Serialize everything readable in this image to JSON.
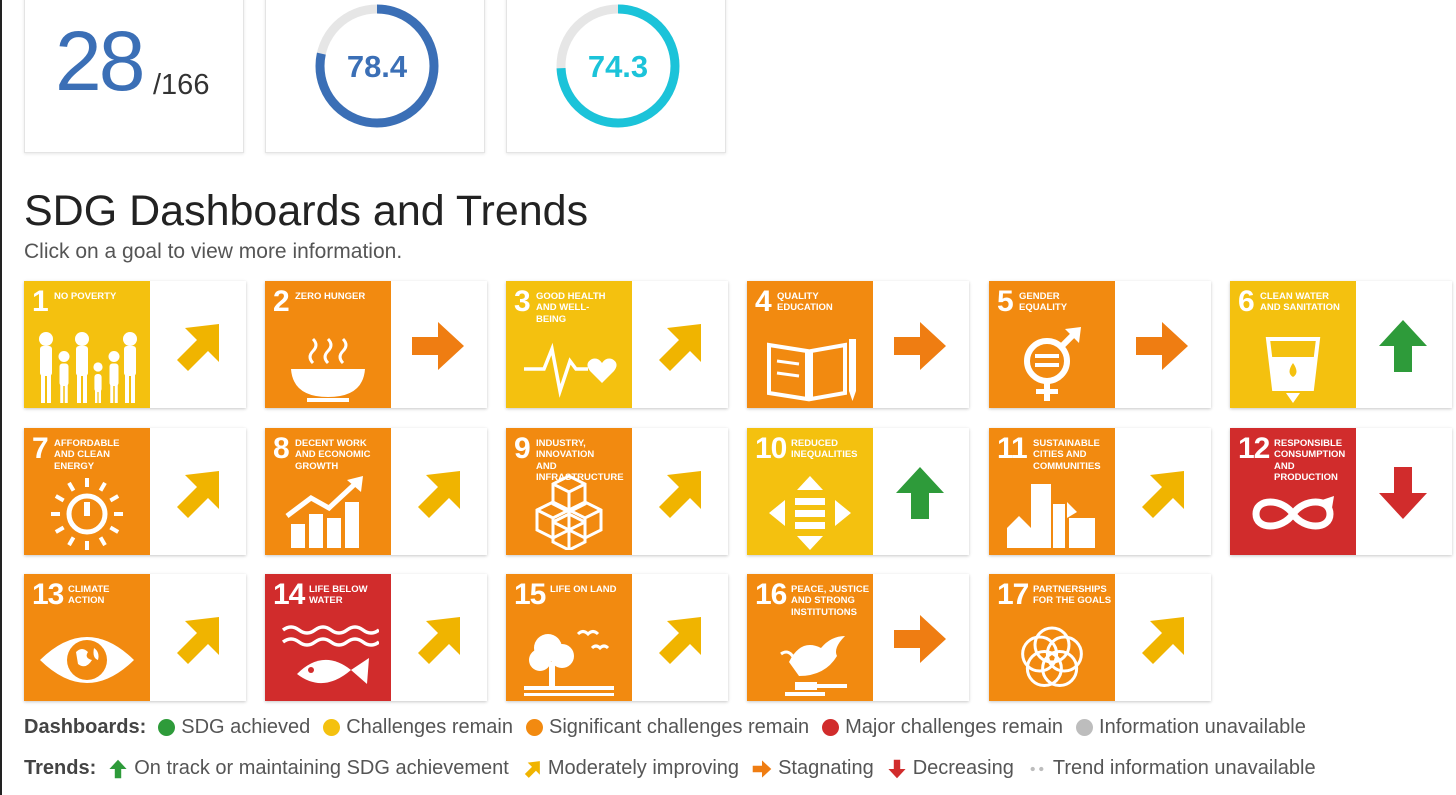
{
  "stats": {
    "rank": "28",
    "rank_total": "/166",
    "score1": {
      "value": "78.4",
      "fraction": 0.784,
      "color": "#3b6fb6"
    },
    "score2": {
      "value": "74.3",
      "fraction": 0.743,
      "color": "#1bc3d9"
    }
  },
  "section": {
    "title": "SDG Dashboards and Trends",
    "subtitle": "Click on a goal to view more information."
  },
  "colors": {
    "green": "#2e9b3a",
    "yellow": "#f4c10f",
    "orange": "#f28a10",
    "red": "#d12c2c",
    "grey": "#bdbdbd",
    "yellow_arrow": "#f0b400",
    "orange_arrow": "#ef7d12"
  },
  "goals": [
    {
      "num": "1",
      "title": "No poverty",
      "status": "yellow",
      "trend": "moderate",
      "icon": "family-icon"
    },
    {
      "num": "2",
      "title": "Zero hunger",
      "status": "orange",
      "trend": "stagnating",
      "icon": "bowl-icon"
    },
    {
      "num": "3",
      "title": "Good health and well-being",
      "status": "yellow",
      "trend": "moderate",
      "icon": "heartbeat-icon"
    },
    {
      "num": "4",
      "title": "Quality education",
      "status": "orange",
      "trend": "stagnating",
      "icon": "book-icon"
    },
    {
      "num": "5",
      "title": "Gender equality",
      "status": "orange",
      "trend": "stagnating",
      "icon": "gender-icon"
    },
    {
      "num": "6",
      "title": "Clean water and sanitation",
      "status": "yellow",
      "trend": "on-track",
      "icon": "water-glass-icon"
    },
    {
      "num": "7",
      "title": "Affordable and clean energy",
      "status": "orange",
      "trend": "moderate",
      "icon": "sun-power-icon"
    },
    {
      "num": "8",
      "title": "Decent work and economic growth",
      "status": "orange",
      "trend": "moderate",
      "icon": "growth-chart-icon"
    },
    {
      "num": "9",
      "title": "Industry, innovation and infrastructure",
      "status": "orange",
      "trend": "moderate",
      "icon": "cubes-icon"
    },
    {
      "num": "10",
      "title": "Reduced inequalities",
      "status": "yellow",
      "trend": "on-track",
      "icon": "equality-arrows-icon"
    },
    {
      "num": "11",
      "title": "Sustainable cities and communities",
      "status": "orange",
      "trend": "moderate",
      "icon": "city-icon"
    },
    {
      "num": "12",
      "title": "Responsible consumption and production",
      "status": "red",
      "trend": "decreasing",
      "icon": "infinity-icon"
    },
    {
      "num": "13",
      "title": "Climate action",
      "status": "orange",
      "trend": "moderate",
      "icon": "eye-globe-icon"
    },
    {
      "num": "14",
      "title": "Life below water",
      "status": "red",
      "trend": "moderate",
      "icon": "fish-icon"
    },
    {
      "num": "15",
      "title": "Life on land",
      "status": "orange",
      "trend": "moderate",
      "icon": "tree-birds-icon"
    },
    {
      "num": "16",
      "title": "Peace, justice and strong institutions",
      "status": "orange",
      "trend": "stagnating",
      "icon": "dove-gavel-icon"
    },
    {
      "num": "17",
      "title": "Partnerships for the goals",
      "status": "orange",
      "trend": "moderate",
      "icon": "rings-icon"
    }
  ],
  "legend": {
    "dashboards": {
      "label": "Dashboards:",
      "items": [
        {
          "text": "SDG achieved",
          "color": "green"
        },
        {
          "text": "Challenges remain",
          "color": "yellow"
        },
        {
          "text": "Significant challenges remain",
          "color": "orange"
        },
        {
          "text": "Major challenges remain",
          "color": "red"
        },
        {
          "text": "Information unavailable",
          "color": "grey"
        }
      ]
    },
    "trends": {
      "label": "Trends:",
      "items": [
        {
          "text": "On track or maintaining SDG achievement",
          "trend": "on-track"
        },
        {
          "text": "Moderately improving",
          "trend": "moderate"
        },
        {
          "text": "Stagnating",
          "trend": "stagnating"
        },
        {
          "text": "Decreasing",
          "trend": "decreasing"
        },
        {
          "text": "Trend information unavailable",
          "trend": "unavailable"
        }
      ]
    }
  }
}
